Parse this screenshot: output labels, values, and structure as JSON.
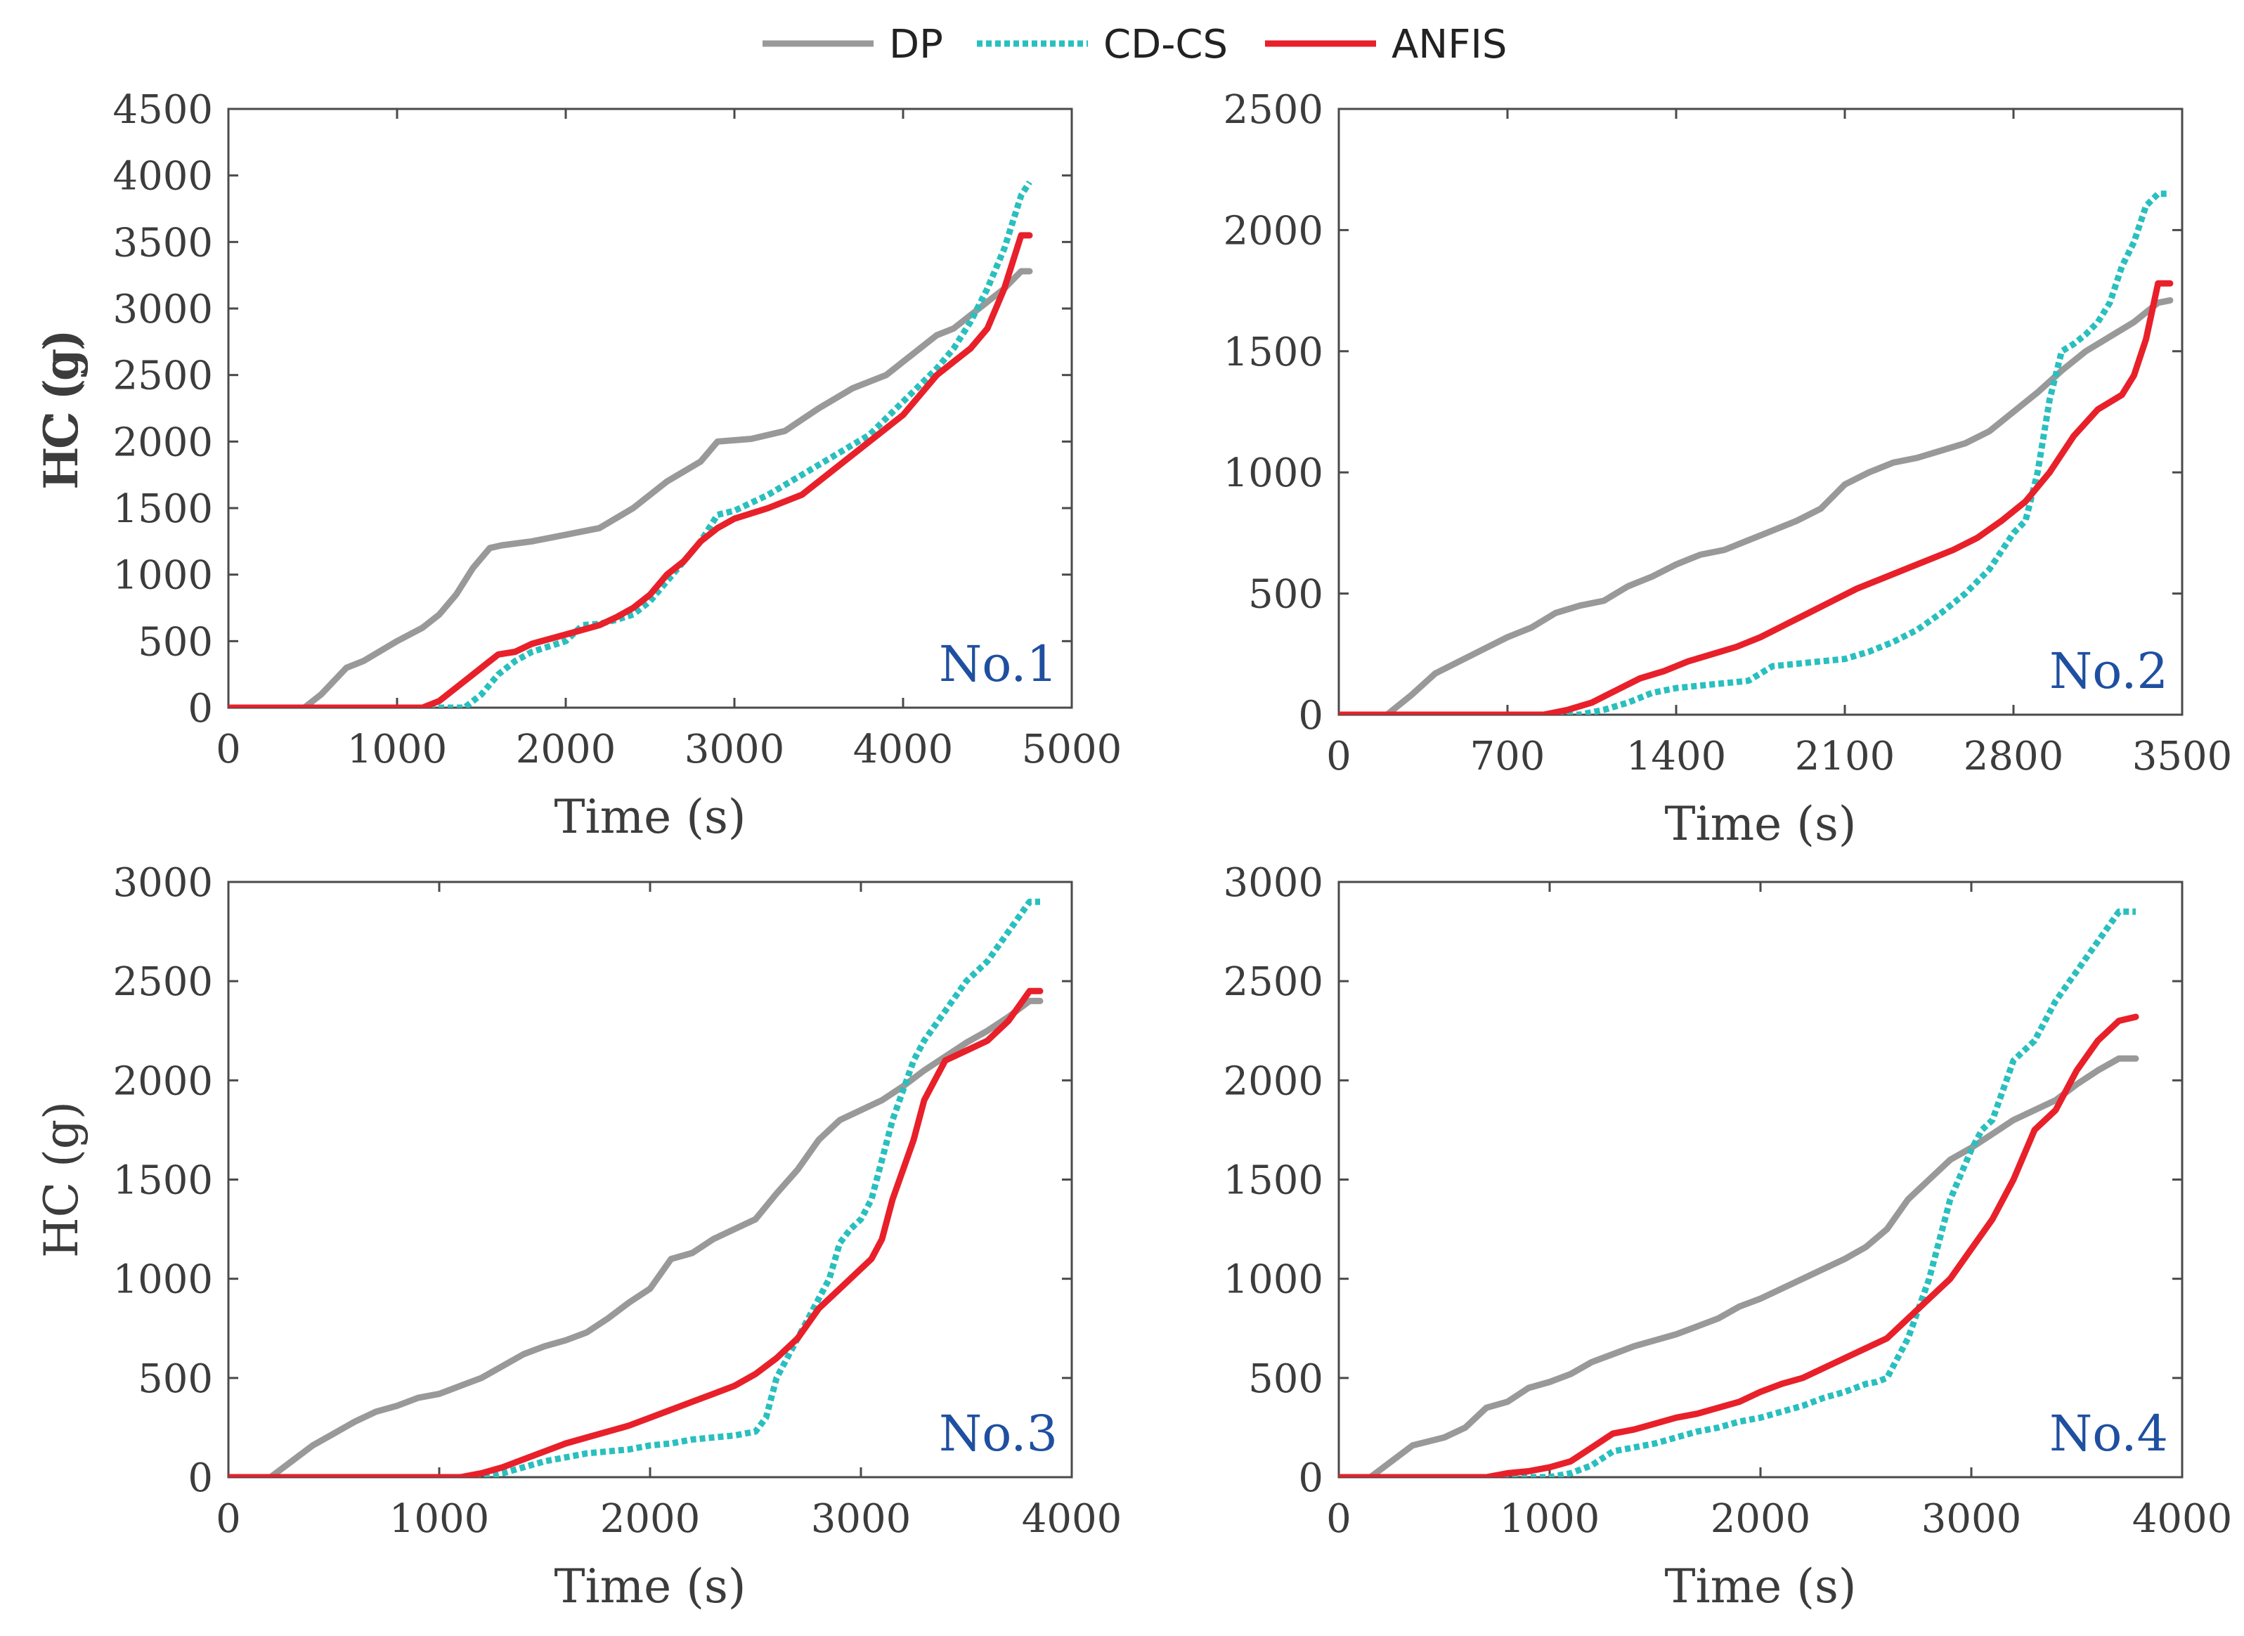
{
  "legend": [
    {
      "name": "DP",
      "color": "#999999",
      "style": "solid"
    },
    {
      "name": "CD-CS",
      "color": "#2abfbf",
      "style": "dotted"
    },
    {
      "name": "ANFIS",
      "color": "#e8202a",
      "style": "solid"
    }
  ],
  "label_color": "#1f4fa0",
  "chart_data": [
    {
      "type": "line",
      "panel_label": "No.1",
      "xlabel": "Time (s)",
      "ylabel": "HC (g)",
      "xlim": [
        0,
        5000
      ],
      "ylim": [
        0,
        4500
      ],
      "xticks": [
        0,
        1000,
        2000,
        3000,
        4000,
        5000
      ],
      "yticks": [
        0,
        500,
        1000,
        1500,
        2000,
        2500,
        3000,
        3500,
        4000,
        4500
      ],
      "series": [
        {
          "name": "DP",
          "x": [
            0,
            450,
            550,
            700,
            800,
            1000,
            1150,
            1250,
            1350,
            1450,
            1550,
            1620,
            1800,
            2000,
            2200,
            2400,
            2600,
            2800,
            2900,
            3100,
            3300,
            3500,
            3700,
            3900,
            4000,
            4100,
            4200,
            4300,
            4400,
            4500,
            4600,
            4700,
            4750
          ],
          "y": [
            0,
            0,
            100,
            300,
            350,
            500,
            600,
            700,
            850,
            1050,
            1200,
            1220,
            1250,
            1300,
            1350,
            1500,
            1700,
            1850,
            2000,
            2020,
            2080,
            2250,
            2400,
            2500,
            2600,
            2700,
            2800,
            2850,
            2950,
            3050,
            3150,
            3280,
            3280
          ]
        },
        {
          "name": "CD-CS",
          "x": [
            0,
            1200,
            1400,
            1500,
            1600,
            1700,
            1800,
            2000,
            2100,
            2200,
            2300,
            2400,
            2500,
            2600,
            2700,
            2800,
            2900,
            3000,
            3200,
            3400,
            3600,
            3800,
            4000,
            4200,
            4300,
            4400,
            4500,
            4600,
            4700,
            4750
          ],
          "y": [
            0,
            0,
            0,
            100,
            250,
            350,
            420,
            500,
            620,
            630,
            660,
            700,
            800,
            950,
            1100,
            1250,
            1450,
            1480,
            1600,
            1750,
            1900,
            2050,
            2300,
            2550,
            2700,
            2900,
            3150,
            3450,
            3850,
            3950
          ]
        },
        {
          "name": "ANFIS",
          "x": [
            0,
            1150,
            1250,
            1350,
            1450,
            1550,
            1600,
            1700,
            1800,
            2000,
            2200,
            2300,
            2400,
            2500,
            2600,
            2700,
            2800,
            2900,
            3000,
            3200,
            3400,
            3600,
            3800,
            4000,
            4100,
            4200,
            4300,
            4400,
            4500,
            4600,
            4700,
            4750
          ],
          "y": [
            0,
            0,
            50,
            150,
            250,
            350,
            400,
            420,
            480,
            550,
            620,
            680,
            750,
            850,
            1000,
            1100,
            1250,
            1350,
            1420,
            1500,
            1600,
            1800,
            2000,
            2200,
            2350,
            2500,
            2600,
            2700,
            2850,
            3150,
            3550,
            3550
          ]
        }
      ]
    },
    {
      "type": "line",
      "panel_label": "No.2",
      "xlabel": "Time (s)",
      "ylabel": "HC (g)",
      "xlim": [
        0,
        3500
      ],
      "ylim": [
        0,
        2500
      ],
      "xticks": [
        0,
        700,
        1400,
        2100,
        2800,
        3500
      ],
      "yticks": [
        0,
        500,
        1000,
        1500,
        2000,
        2500
      ],
      "series": [
        {
          "name": "DP",
          "x": [
            0,
            200,
            300,
            400,
            500,
            600,
            700,
            800,
            900,
            1000,
            1100,
            1200,
            1300,
            1400,
            1500,
            1600,
            1700,
            1800,
            1900,
            2000,
            2100,
            2200,
            2300,
            2400,
            2500,
            2600,
            2700,
            2800,
            2900,
            3000,
            3100,
            3200,
            3300,
            3400,
            3450
          ],
          "y": [
            0,
            0,
            80,
            170,
            220,
            270,
            320,
            360,
            420,
            450,
            470,
            530,
            570,
            620,
            660,
            680,
            720,
            760,
            800,
            850,
            950,
            1000,
            1040,
            1060,
            1090,
            1120,
            1170,
            1250,
            1330,
            1420,
            1500,
            1560,
            1620,
            1700,
            1710
          ]
        },
        {
          "name": "CD-CS",
          "x": [
            0,
            1000,
            1100,
            1200,
            1300,
            1400,
            1500,
            1600,
            1700,
            1800,
            1900,
            2000,
            2100,
            2200,
            2300,
            2400,
            2500,
            2600,
            2700,
            2800,
            2850,
            2900,
            2950,
            3000,
            3050,
            3100,
            3150,
            3200,
            3250,
            3300,
            3350,
            3400,
            3450
          ],
          "y": [
            0,
            0,
            20,
            50,
            90,
            110,
            120,
            130,
            140,
            200,
            210,
            220,
            230,
            260,
            300,
            350,
            420,
            500,
            600,
            750,
            800,
            1000,
            1300,
            1500,
            1530,
            1570,
            1620,
            1700,
            1850,
            1950,
            2100,
            2150,
            2150
          ]
        },
        {
          "name": "ANFIS",
          "x": [
            0,
            850,
            950,
            1050,
            1150,
            1250,
            1350,
            1450,
            1550,
            1650,
            1750,
            1850,
            1950,
            2050,
            2150,
            2250,
            2350,
            2450,
            2550,
            2650,
            2750,
            2850,
            2950,
            3050,
            3150,
            3250,
            3300,
            3350,
            3400,
            3450
          ],
          "y": [
            0,
            0,
            20,
            50,
            100,
            150,
            180,
            220,
            250,
            280,
            320,
            370,
            420,
            470,
            520,
            560,
            600,
            640,
            680,
            730,
            800,
            880,
            1000,
            1150,
            1260,
            1320,
            1400,
            1550,
            1780,
            1780
          ]
        }
      ]
    },
    {
      "type": "line",
      "panel_label": "No.3",
      "xlabel": "Time (s)",
      "ylabel": "HC (g)",
      "xlim": [
        0,
        4000
      ],
      "ylim": [
        0,
        3000
      ],
      "xticks": [
        0,
        1000,
        2000,
        3000,
        4000
      ],
      "yticks": [
        0,
        500,
        1000,
        1500,
        2000,
        2500,
        3000
      ],
      "series": [
        {
          "name": "DP",
          "x": [
            0,
            200,
            300,
            400,
            500,
            600,
            700,
            800,
            900,
            1000,
            1100,
            1200,
            1300,
            1400,
            1500,
            1600,
            1700,
            1800,
            1900,
            2000,
            2100,
            2200,
            2300,
            2400,
            2500,
            2600,
            2700,
            2800,
            2900,
            3000,
            3100,
            3200,
            3300,
            3400,
            3500,
            3600,
            3700,
            3800,
            3850
          ],
          "y": [
            0,
            0,
            80,
            160,
            220,
            280,
            330,
            360,
            400,
            420,
            460,
            500,
            560,
            620,
            660,
            690,
            730,
            800,
            880,
            950,
            1100,
            1130,
            1200,
            1250,
            1300,
            1430,
            1550,
            1700,
            1800,
            1850,
            1900,
            1970,
            2050,
            2120,
            2190,
            2250,
            2320,
            2400,
            2400
          ]
        },
        {
          "name": "CD-CS",
          "x": [
            0,
            1200,
            1300,
            1400,
            1500,
            1600,
            1700,
            1800,
            1900,
            2000,
            2100,
            2200,
            2300,
            2400,
            2500,
            2550,
            2600,
            2700,
            2800,
            2850,
            2900,
            2950,
            3000,
            3050,
            3100,
            3150,
            3200,
            3250,
            3300,
            3400,
            3500,
            3600,
            3700,
            3800,
            3850
          ],
          "y": [
            0,
            0,
            20,
            50,
            80,
            100,
            120,
            130,
            140,
            160,
            170,
            190,
            200,
            210,
            230,
            300,
            500,
            700,
            900,
            1000,
            1180,
            1250,
            1300,
            1400,
            1600,
            1800,
            1950,
            2100,
            2200,
            2350,
            2500,
            2600,
            2750,
            2900,
            2900
          ]
        },
        {
          "name": "ANFIS",
          "x": [
            0,
            1100,
            1200,
            1300,
            1400,
            1500,
            1600,
            1700,
            1800,
            1900,
            2000,
            2100,
            2200,
            2300,
            2400,
            2500,
            2600,
            2700,
            2800,
            2900,
            3000,
            3050,
            3100,
            3150,
            3200,
            3250,
            3300,
            3350,
            3400,
            3500,
            3600,
            3700,
            3800,
            3850
          ],
          "y": [
            0,
            0,
            20,
            50,
            90,
            130,
            170,
            200,
            230,
            260,
            300,
            340,
            380,
            420,
            460,
            520,
            600,
            700,
            850,
            950,
            1050,
            1100,
            1200,
            1400,
            1550,
            1700,
            1900,
            2000,
            2100,
            2150,
            2200,
            2300,
            2450,
            2450
          ]
        }
      ]
    },
    {
      "type": "line",
      "panel_label": "No.4",
      "xlabel": "Time (s)",
      "ylabel": "HC (g)",
      "xlim": [
        0,
        4000
      ],
      "ylim": [
        0,
        3000
      ],
      "xticks": [
        0,
        1000,
        2000,
        3000,
        4000
      ],
      "yticks": [
        0,
        500,
        1000,
        1500,
        2000,
        2500,
        3000
      ],
      "series": [
        {
          "name": "DP",
          "x": [
            0,
            150,
            250,
            350,
            500,
            600,
            700,
            800,
            900,
            1000,
            1100,
            1200,
            1300,
            1400,
            1500,
            1600,
            1700,
            1800,
            1900,
            2000,
            2100,
            2200,
            2300,
            2400,
            2500,
            2600,
            2700,
            2800,
            2900,
            3000,
            3100,
            3200,
            3300,
            3400,
            3500,
            3600,
            3700,
            3780
          ],
          "y": [
            0,
            0,
            80,
            160,
            200,
            250,
            350,
            380,
            450,
            480,
            520,
            580,
            620,
            660,
            690,
            720,
            760,
            800,
            860,
            900,
            950,
            1000,
            1050,
            1100,
            1160,
            1250,
            1400,
            1500,
            1600,
            1660,
            1730,
            1800,
            1850,
            1900,
            1980,
            2050,
            2110,
            2110
          ]
        },
        {
          "name": "CD-CS",
          "x": [
            0,
            1000,
            1100,
            1200,
            1300,
            1400,
            1500,
            1600,
            1700,
            1800,
            1900,
            2000,
            2100,
            2200,
            2300,
            2400,
            2500,
            2550,
            2600,
            2700,
            2800,
            2900,
            3000,
            3050,
            3100,
            3150,
            3200,
            3300,
            3400,
            3500,
            3600,
            3700,
            3780
          ],
          "y": [
            0,
            0,
            20,
            60,
            130,
            150,
            170,
            200,
            230,
            250,
            280,
            300,
            330,
            360,
            400,
            430,
            470,
            480,
            500,
            700,
            1000,
            1400,
            1650,
            1750,
            1800,
            1950,
            2100,
            2200,
            2400,
            2550,
            2700,
            2850,
            2850
          ]
        },
        {
          "name": "ANFIS",
          "x": [
            0,
            700,
            800,
            900,
            1000,
            1100,
            1200,
            1300,
            1400,
            1500,
            1600,
            1700,
            1800,
            1900,
            2000,
            2100,
            2200,
            2300,
            2400,
            2500,
            2600,
            2700,
            2800,
            2900,
            3000,
            3100,
            3200,
            3300,
            3400,
            3500,
            3600,
            3700,
            3780
          ],
          "y": [
            0,
            0,
            20,
            30,
            50,
            80,
            150,
            220,
            240,
            270,
            300,
            320,
            350,
            380,
            430,
            470,
            500,
            550,
            600,
            650,
            700,
            800,
            900,
            1000,
            1150,
            1300,
            1500,
            1750,
            1850,
            2050,
            2200,
            2300,
            2320
          ]
        }
      ]
    }
  ]
}
